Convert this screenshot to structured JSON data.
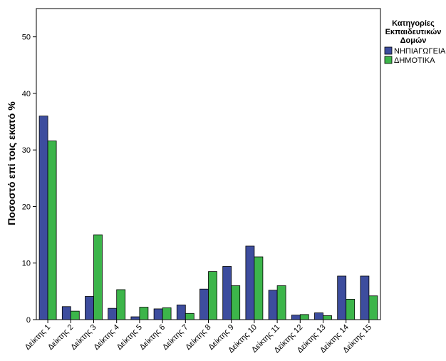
{
  "chart_data": {
    "type": "bar",
    "ylabel": "Ποσοστό επί τοις εκατό %",
    "xlabel": "",
    "ylim": [
      0,
      55
    ],
    "yticks": [
      0,
      10,
      20,
      30,
      40,
      50
    ],
    "grid": false,
    "legend": {
      "title_lines": [
        "Κατηγορίες",
        "Εκπαιδευτικών",
        "Δομών"
      ],
      "placement": "top-right"
    },
    "categories": [
      "Δείκτης 1",
      "Δείκτης 2",
      "Δείκτης 3",
      "Δείκτης 4",
      "Δείκτης 5",
      "Δείκτης 6",
      "Δείκτης 7",
      "Δείκτης 8",
      "Δείκτης 9",
      "Δείκτης 10",
      "Δείκτης 11",
      "Δείκτης 12",
      "Δείκτης 13",
      "Δείκτης 14",
      "Δείκτης 15"
    ],
    "series": [
      {
        "name": "ΝΗΠΙΑΓΩΓΕΙΑ",
        "color": "#3d4d9e",
        "values": [
          36.0,
          2.3,
          4.1,
          2.0,
          0.5,
          1.9,
          2.6,
          5.4,
          9.4,
          13.0,
          5.2,
          0.8,
          1.2,
          7.7,
          7.7
        ]
      },
      {
        "name": "ΔΗΜΟΤΙΚΑ",
        "color": "#3cb54a",
        "values": [
          31.6,
          1.5,
          15.0,
          5.3,
          2.2,
          2.1,
          1.1,
          8.5,
          6.0,
          11.1,
          6.0,
          0.9,
          0.7,
          3.6,
          4.2
        ]
      }
    ]
  }
}
